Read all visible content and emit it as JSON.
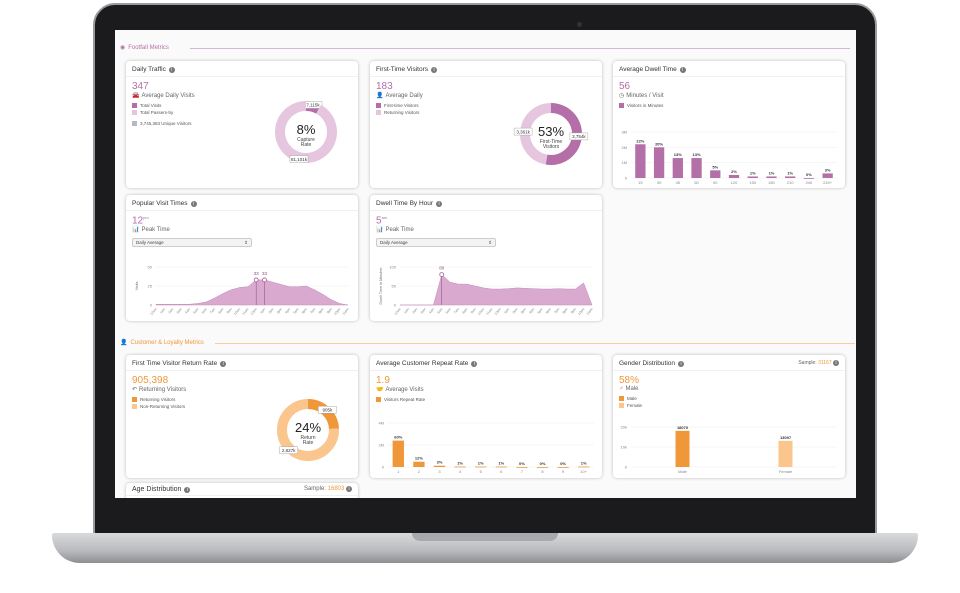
{
  "colors": {
    "purple": "#b46fa8",
    "purple_light": "#e6c6df",
    "orange": "#f0973a",
    "orange_light": "#fbc68d",
    "grey": "#b5b9c4"
  },
  "sections": {
    "footfall": {
      "label": "Footfall Metrics",
      "icon": "map-pin-icon"
    },
    "loyalty": {
      "label": "Customer & Loyalty Metrics",
      "icon": "user-icon"
    }
  },
  "daily_traffic": {
    "title": "Daily Traffic",
    "value": "347",
    "subtitle": "Average Daily Visits",
    "icon": "car-icon",
    "legend": [
      "Total Visits",
      "Total Passers-by"
    ],
    "unique": "3,745,383 Unique Visitors",
    "center": "8%",
    "center_label": [
      "Capture",
      "Rate"
    ],
    "slices": [
      {
        "label": "7,115k",
        "value": 7115
      },
      {
        "label": "81,101k",
        "value": 81101
      }
    ]
  },
  "first_time": {
    "title": "First-Time Visitors",
    "value": "183",
    "subtitle": "Average Daily",
    "icon": "user-plus-icon",
    "legend": [
      "First-time Visitors",
      "Returning Visitors"
    ],
    "center": "53%",
    "center_label": [
      "First-Time",
      "Visitors"
    ],
    "slices": [
      {
        "label": "3,754k",
        "value": 3754
      },
      {
        "label": "3,361k",
        "value": 3361
      }
    ]
  },
  "dwell": {
    "title": "Average Dwell Time",
    "value": "56",
    "subtitle": "Minutes / Visit",
    "icon": "clock-icon",
    "legend": "Visitors in Minutes",
    "chart_data": {
      "type": "bar",
      "categories": [
        "15",
        "30",
        "45",
        "60",
        "90",
        "120",
        "150",
        "180",
        "210",
        "240",
        "240+"
      ],
      "values": [
        22,
        20,
        13,
        13,
        5,
        2,
        1,
        1,
        1,
        0,
        3
      ],
      "labels": [
        "22%",
        "20%",
        "13%",
        "13%",
        "5%",
        "2%",
        "1%",
        "1%",
        "1%",
        "0%",
        "3%"
      ],
      "yticks": [
        "0",
        "1M",
        "2M",
        "3M"
      ],
      "ylim": [
        0,
        30
      ]
    }
  },
  "visit_times": {
    "title": "Popular Visit Times",
    "value": "12",
    "value_sup": "pm",
    "subtitle": "Peak Time",
    "icon": "bar-chart-icon",
    "select": "Daily Average",
    "chart_data": {
      "type": "area",
      "ylabel": "Visits",
      "yticks": [
        "0",
        "25",
        "50"
      ],
      "ylim": [
        0,
        50
      ],
      "categories": [
        "12am",
        "1am",
        "2am",
        "3am",
        "4am",
        "5am",
        "6am",
        "7am",
        "8am",
        "9am",
        "10am",
        "11am",
        "12pm",
        "1pm",
        "2pm",
        "3pm",
        "4pm",
        "5pm",
        "6pm",
        "7pm",
        "8pm",
        "9pm",
        "10pm",
        "11pm"
      ],
      "values": [
        1,
        1,
        1,
        1,
        1,
        2,
        4,
        9,
        15,
        20,
        23,
        24,
        33,
        33,
        30,
        27,
        24,
        24,
        25,
        20,
        14,
        7,
        2,
        0
      ],
      "markers": [
        {
          "index": 12,
          "label": "33"
        },
        {
          "index": 13,
          "label": "33"
        }
      ]
    }
  },
  "dwell_hour": {
    "title": "Dwell Time By Hour",
    "value": "5",
    "value_sup": "am",
    "subtitle": "Peak Time",
    "icon": "bar-chart-icon",
    "select": "Daily Average",
    "chart_data": {
      "type": "area",
      "ylabel": "Dwell Time in Minutes",
      "yticks": [
        "0",
        "50",
        "100"
      ],
      "ylim": [
        0,
        100
      ],
      "categories": [
        "12am",
        "1am",
        "2am",
        "3am",
        "4am",
        "5am",
        "6am",
        "7am",
        "8am",
        "9am",
        "10am",
        "11am",
        "12pm",
        "1pm",
        "2pm",
        "3pm",
        "4pm",
        "5pm",
        "6pm",
        "7pm",
        "8pm",
        "9pm",
        "10pm",
        "11pm"
      ],
      "values": [
        0,
        0,
        0,
        0,
        0,
        80,
        60,
        55,
        55,
        50,
        45,
        42,
        42,
        43,
        45,
        44,
        43,
        42,
        42,
        43,
        42,
        42,
        58,
        0
      ],
      "markers": [
        {
          "index": 5,
          "label": "80"
        }
      ]
    }
  },
  "return_rate": {
    "title": "First Time Visitor Return Rate",
    "value": "905,398",
    "subtitle": "Returning Visitors",
    "icon": "reply-icon",
    "legend": [
      "Returning Visitors",
      "Non-Returning Visitors"
    ],
    "center": "24%",
    "center_label": [
      "Return",
      "Rate"
    ],
    "slices": [
      {
        "label": "905k",
        "value": 905
      },
      {
        "label": "2,827k",
        "value": 2827
      }
    ]
  },
  "repeat": {
    "title": "Average Customer Repeat Rate",
    "value": "1.9",
    "subtitle": "Average Visits",
    "icon": "handshake-icon",
    "legend": "Visitors Repeat Rate",
    "chart_data": {
      "type": "bar",
      "categories": [
        "1",
        "2",
        "3",
        "4",
        "5",
        "6",
        "7",
        "8",
        "9",
        "10+"
      ],
      "values": [
        60,
        12,
        3,
        1,
        1,
        1,
        0,
        0,
        0,
        1
      ],
      "labels": [
        "60%",
        "12%",
        "3%",
        "1%",
        "1%",
        "1%",
        "0%",
        "0%",
        "0%",
        "1%"
      ],
      "yticks": [
        "0",
        "2M",
        "4M"
      ],
      "ylim": [
        0,
        100
      ]
    }
  },
  "gender": {
    "title": "Gender Distribution",
    "sample_label": "Sample:",
    "sample": "31167",
    "value": "58%",
    "subtitle": "Male",
    "icon": "male-icon",
    "legend": [
      "Male",
      "Female"
    ],
    "chart_data": {
      "type": "bar",
      "categories": [
        "Male",
        "Female"
      ],
      "values": [
        18070,
        13097
      ],
      "labels": [
        "18070",
        "13097"
      ],
      "yticks": [
        "0",
        "10k",
        "20k"
      ],
      "ylim": [
        0,
        20000
      ]
    }
  },
  "age": {
    "title": "Age Distribution",
    "sample_label": "Sample:",
    "sample": "16803"
  }
}
